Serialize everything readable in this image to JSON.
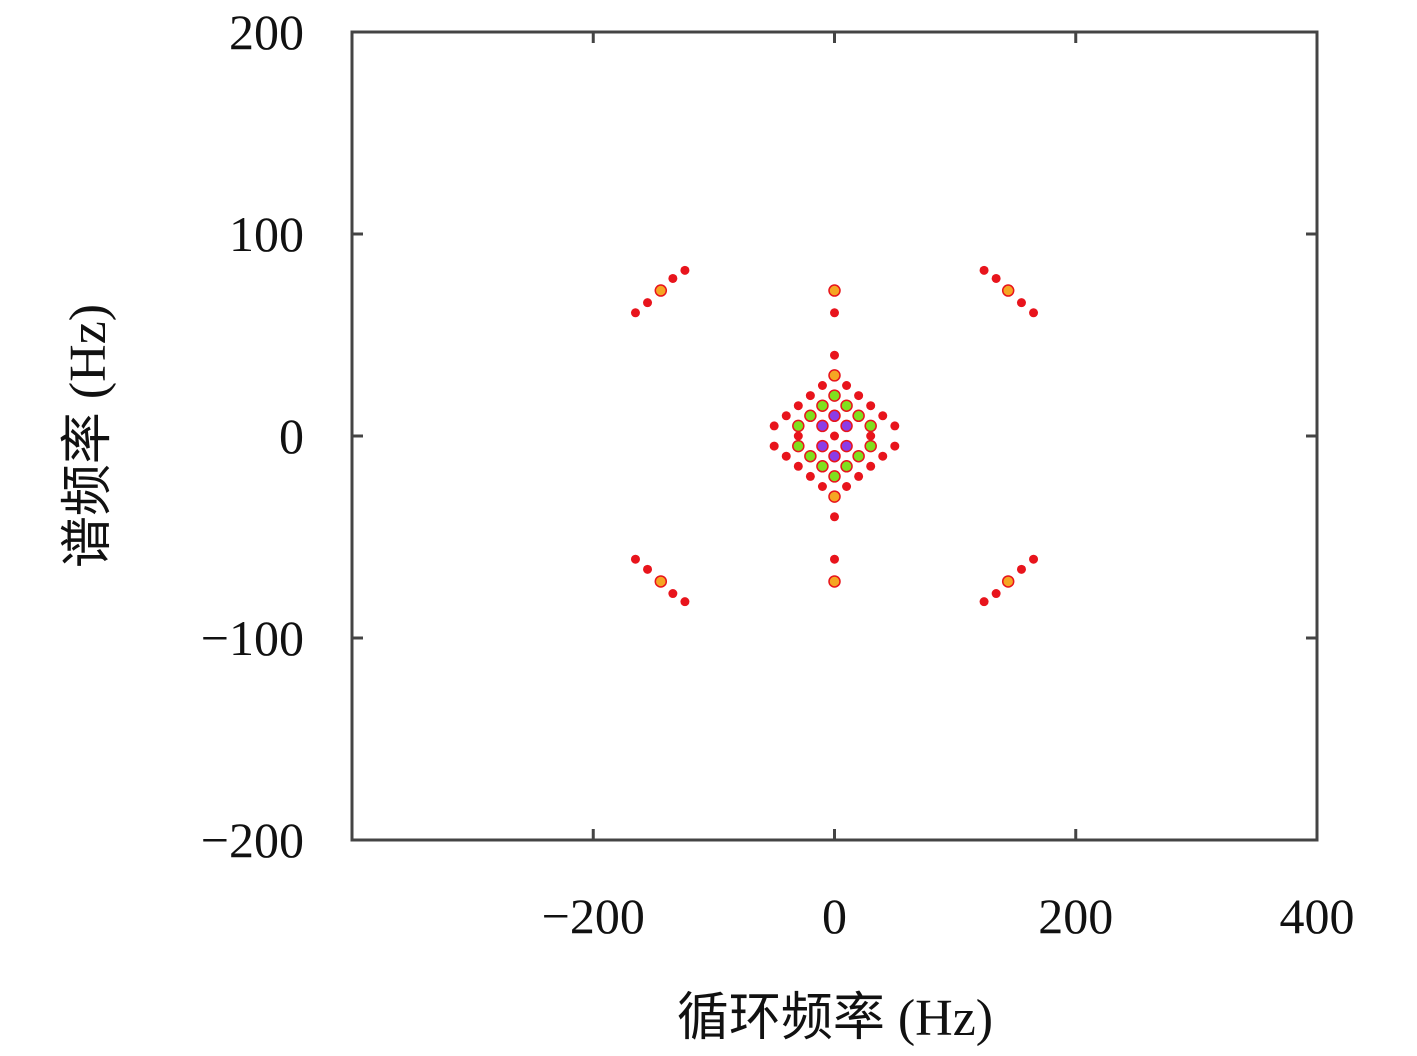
{
  "chart_data": {
    "type": "scatter",
    "xlabel": "循环频率 (Hz)",
    "ylabel": "谱频率 (Hz)",
    "xlim": [
      -400,
      400
    ],
    "xticks": [
      {
        "value": -200,
        "label": "−200"
      },
      0,
      200,
      400
    ],
    "ylim": [
      -200,
      200
    ],
    "yticks": [
      {
        "value": -200,
        "label": "−200"
      },
      {
        "value": -100,
        "label": "−100"
      },
      0,
      100,
      200
    ],
    "series": [
      {
        "color": "#e8141c",
        "x": [
          -165,
          -155,
          -134,
          -124,
          165,
          155,
          134,
          124,
          -165,
          -155,
          -134,
          -124,
          165,
          155,
          134,
          124,
          0,
          0,
          0,
          0,
          -10,
          10,
          -20,
          20,
          -30,
          30,
          -40,
          40,
          -50,
          50,
          -10,
          10,
          -20,
          20,
          -30,
          30,
          -40,
          40,
          -50,
          50,
          -30,
          30,
          0
        ],
        "values": [
          61,
          66,
          78,
          82,
          61,
          66,
          78,
          82,
          -61,
          -66,
          -78,
          -82,
          -61,
          -66,
          -78,
          -82,
          61,
          -61,
          40,
          -40,
          25,
          25,
          20,
          20,
          15,
          15,
          10,
          10,
          5,
          5,
          -25,
          -25,
          -20,
          -20,
          -15,
          -15,
          -10,
          -10,
          -5,
          -5,
          0,
          0,
          0
        ]
      },
      {
        "color": "#f5a623",
        "x": [
          -144,
          144,
          -144,
          144,
          0,
          0,
          0,
          0
        ],
        "values": [
          72,
          72,
          -72,
          -72,
          72,
          -72,
          30,
          -30
        ]
      },
      {
        "color": "#7fe01e",
        "x": [
          0,
          0,
          -10,
          10,
          -10,
          10,
          -20,
          20,
          -20,
          20,
          -30,
          30,
          -30,
          30
        ],
        "values": [
          20,
          -20,
          15,
          15,
          -15,
          -15,
          10,
          10,
          -10,
          -10,
          5,
          5,
          -5,
          -5
        ]
      },
      {
        "color": "#8c3ce6",
        "x": [
          0,
          0,
          -10,
          10,
          -10,
          10
        ],
        "values": [
          10,
          -10,
          5,
          5,
          -5,
          -5
        ]
      }
    ]
  }
}
